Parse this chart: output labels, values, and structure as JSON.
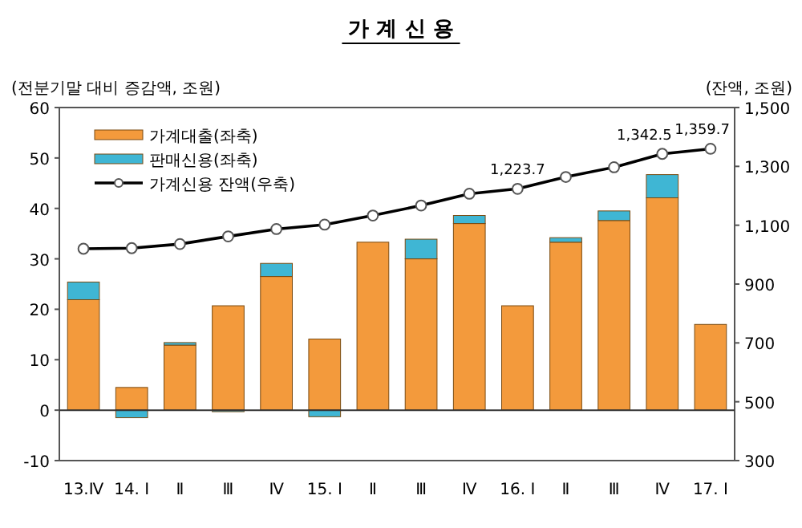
{
  "chart_data": {
    "type": "bar",
    "title": "가 계 신 용",
    "ylabel": "(전분기말 대비 증감액, 조원)",
    "y2label": "(잔액, 조원)",
    "categories": [
      "13.Ⅳ",
      "14. Ⅰ",
      "Ⅱ",
      "Ⅲ",
      "Ⅳ",
      "15. Ⅰ",
      "Ⅱ",
      "Ⅲ",
      "Ⅳ",
      "16. Ⅰ",
      "Ⅱ",
      "Ⅲ",
      "Ⅳ",
      "17. Ⅰ"
    ],
    "stacked": true,
    "legend": "top left",
    "grid": false,
    "ref_lines": [
      {
        "axis": "y",
        "value": 0,
        "color": "#333333"
      }
    ],
    "ylim": [
      -10,
      60
    ],
    "yticks": [
      -10,
      0,
      10,
      20,
      30,
      40,
      50,
      60
    ],
    "y2lim": [
      300,
      1500
    ],
    "y2ticks": [
      {
        "value": 300,
        "label": "300"
      },
      {
        "value": 500,
        "label": "500"
      },
      {
        "value": 700,
        "label": "700"
      },
      {
        "value": 900,
        "label": "900"
      },
      {
        "value": 1100,
        "label": "1,100"
      },
      {
        "value": 1300,
        "label": "1,300"
      },
      {
        "value": 1500,
        "label": "1,500"
      }
    ],
    "series": [
      {
        "name": "가계대출(좌축)",
        "color": "#f39a3c",
        "values": [
          21.9,
          4.5,
          12.9,
          20.7,
          26.5,
          14.1,
          33.3,
          30.0,
          37.0,
          20.7,
          33.3,
          37.6,
          42.1,
          17.0
        ]
      },
      {
        "name": "판매신용(좌축)",
        "color": "#3fb6d4",
        "values": [
          3.5,
          -1.5,
          0.5,
          -0.3,
          2.6,
          -1.3,
          0,
          3.9,
          1.6,
          0,
          0.9,
          1.9,
          4.6,
          0
        ]
      },
      {
        "name": "가계신용 잔액(우축)",
        "type": "line",
        "axis": "y2",
        "color": "#000000",
        "marker": "circle",
        "values": [
          1020,
          1022,
          1036,
          1062,
          1087,
          1102,
          1133,
          1167,
          1207,
          1223.7,
          1264,
          1297,
          1342.5,
          1359.7
        ],
        "value_labels": [
          null,
          null,
          null,
          null,
          null,
          null,
          null,
          null,
          null,
          "1,223.7",
          null,
          null,
          "1,342.5",
          "1,359.7"
        ]
      }
    ]
  }
}
